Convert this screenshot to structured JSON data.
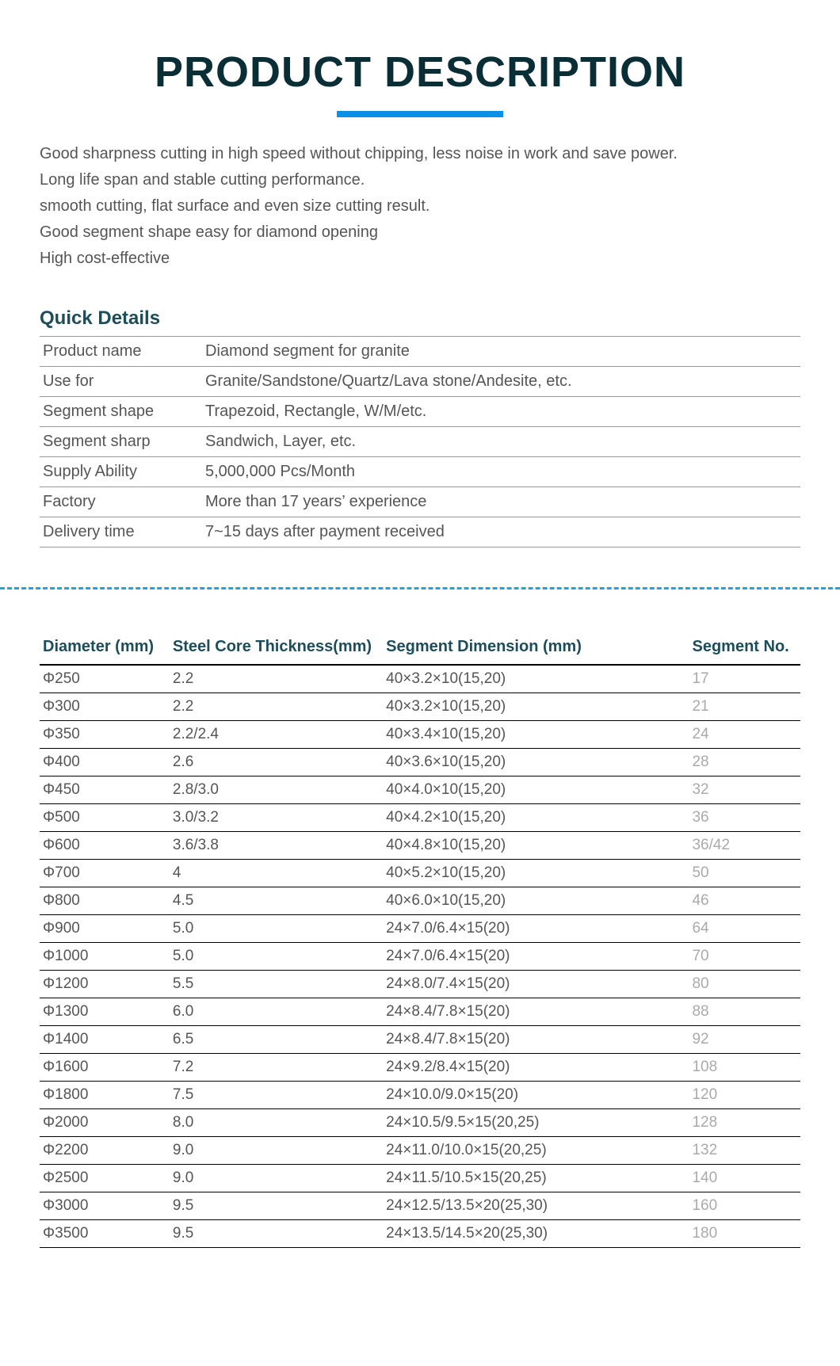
{
  "title": "PRODUCT DESCRIPTION",
  "title_color": "#0a2e36",
  "underline_color": "#0b8ee6",
  "features": [
    "Good sharpness cutting in high speed without chipping, less noise in work and save power.",
    "Long life span and stable cutting performance.",
    "smooth cutting, flat surface and even size cutting result.",
    "Good segment shape easy for diamond opening",
    "High cost-effective"
  ],
  "quick_details_heading": "Quick Details",
  "quick_details": [
    {
      "label": "Product name",
      "value": "Diamond segment for granite"
    },
    {
      "label": "Use for",
      "value": "Granite/Sandstone/Quartz/Lava stone/Andesite, etc."
    },
    {
      "label": "Segment shape",
      "value": "Trapezoid, Rectangle, W/M/etc."
    },
    {
      "label": "Segment sharp",
      "value": "Sandwich, Layer, etc."
    },
    {
      "label": "Supply Ability",
      "value": "5,000,000 Pcs/Month"
    },
    {
      "label": "Factory",
      "value": "More than 17 years’ experience"
    },
    {
      "label": "Delivery time",
      "value": "7~15 days after payment received"
    }
  ],
  "divider_color": "#1aa6e0",
  "spec_headers": {
    "diameter": "Diameter (mm)",
    "thickness": "Steel Core Thickness(mm)",
    "dimension": "Segment Dimension  (mm)",
    "segno": "Segment No."
  },
  "spec_rows": [
    {
      "diameter": "Φ250",
      "thickness": "2.2",
      "dimension": "40×3.2×10(15,20)",
      "segno": "17"
    },
    {
      "diameter": "Φ300",
      "thickness": "2.2",
      "dimension": "40×3.2×10(15,20)",
      "segno": "21"
    },
    {
      "diameter": "Φ350",
      "thickness": "2.2/2.4",
      "dimension": "40×3.4×10(15,20)",
      "segno": "24"
    },
    {
      "diameter": "Φ400",
      "thickness": "2.6",
      "dimension": "40×3.6×10(15,20)",
      "segno": "28"
    },
    {
      "diameter": "Φ450",
      "thickness": "2.8/3.0",
      "dimension": "40×4.0×10(15,20)",
      "segno": "32"
    },
    {
      "diameter": "Φ500",
      "thickness": "3.0/3.2",
      "dimension": "40×4.2×10(15,20)",
      "segno": "36"
    },
    {
      "diameter": "Φ600",
      "thickness": "3.6/3.8",
      "dimension": "40×4.8×10(15,20)",
      "segno": "36/42"
    },
    {
      "diameter": "Φ700",
      "thickness": "4",
      "dimension": "40×5.2×10(15,20)",
      "segno": "50"
    },
    {
      "diameter": "Φ800",
      "thickness": "4.5",
      "dimension": "40×6.0×10(15,20)",
      "segno": "46"
    },
    {
      "diameter": "Φ900",
      "thickness": "5.0",
      "dimension": "24×7.0/6.4×15(20)",
      "segno": "64"
    },
    {
      "diameter": "Φ1000",
      "thickness": "5.0",
      "dimension": "24×7.0/6.4×15(20)",
      "segno": "70"
    },
    {
      "diameter": "Φ1200",
      "thickness": "5.5",
      "dimension": "24×8.0/7.4×15(20)",
      "segno": "80"
    },
    {
      "diameter": "Φ1300",
      "thickness": "6.0",
      "dimension": "24×8.4/7.8×15(20)",
      "segno": "88"
    },
    {
      "diameter": "Φ1400",
      "thickness": "6.5",
      "dimension": "24×8.4/7.8×15(20)",
      "segno": "92"
    },
    {
      "diameter": "Φ1600",
      "thickness": "7.2",
      "dimension": "24×9.2/8.4×15(20)",
      "segno": "108"
    },
    {
      "diameter": "Φ1800",
      "thickness": "7.5",
      "dimension": "24×10.0/9.0×15(20)",
      "segno": "120"
    },
    {
      "diameter": "Φ2000",
      "thickness": "8.0",
      "dimension": "24×10.5/9.5×15(20,25)",
      "segno": "128"
    },
    {
      "diameter": "Φ2200",
      "thickness": "9.0",
      "dimension": "24×11.0/10.0×15(20,25)",
      "segno": "132"
    },
    {
      "diameter": "Φ2500",
      "thickness": "9.0",
      "dimension": "24×11.5/10.5×15(20,25)",
      "segno": "140"
    },
    {
      "diameter": "Φ3000",
      "thickness": "9.5",
      "dimension": "24×12.5/13.5×20(25,30)",
      "segno": "160"
    },
    {
      "diameter": "Φ3500",
      "thickness": "9.5",
      "dimension": "24×13.5/14.5×20(25,30)",
      "segno": "180"
    }
  ],
  "column_widths": {
    "diameter": 140,
    "thickness": 230,
    "dimension": 330,
    "segno": 120
  },
  "segno_text_color": "#aaaaaa",
  "heading_color": "#1e4d5a",
  "body_text_color": "#555555"
}
